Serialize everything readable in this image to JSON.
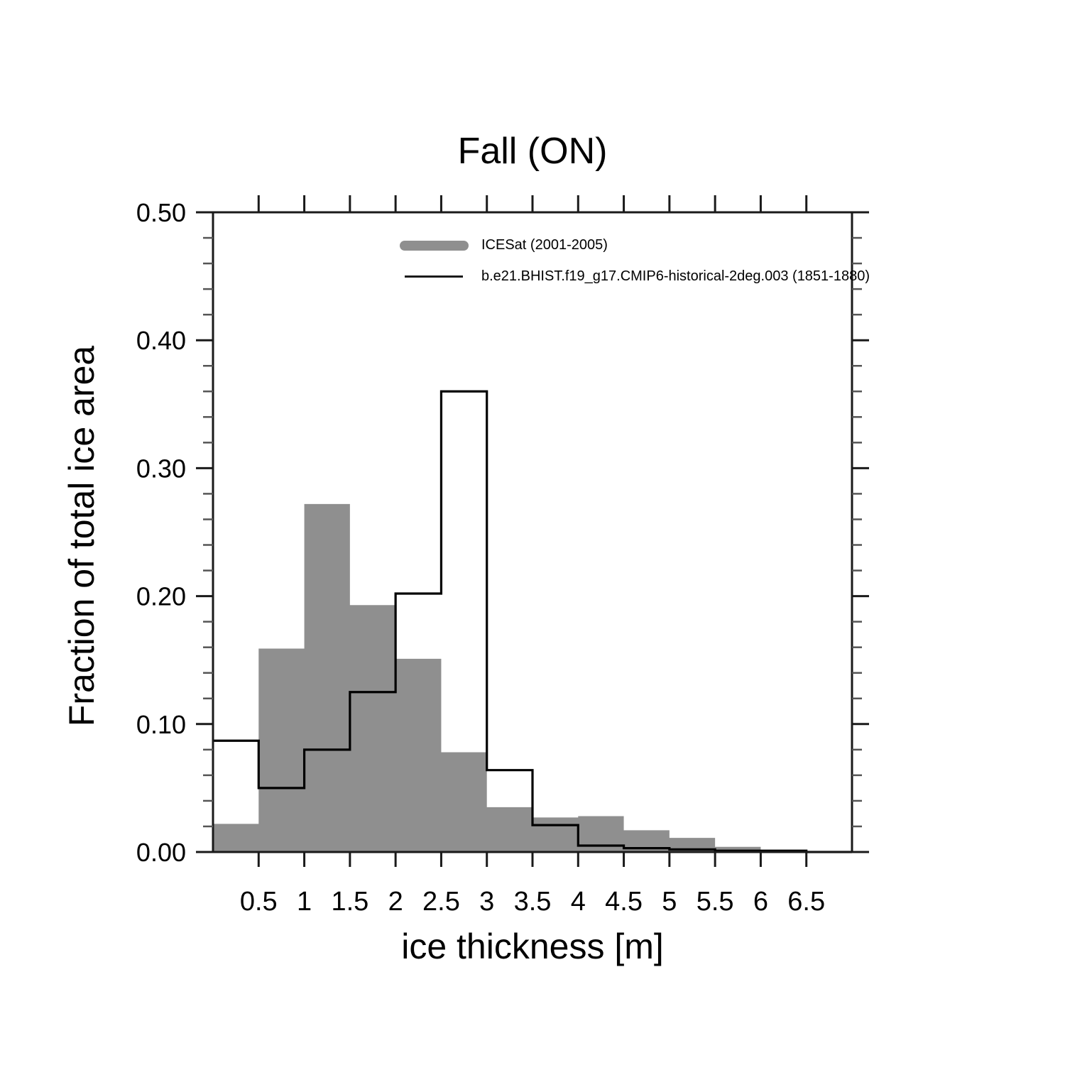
{
  "chart_data": {
    "type": "histogram",
    "title": "Fall (ON)",
    "xlabel": "ice thickness [m]",
    "ylabel": "Fraction of total ice area",
    "xlim": [
      0,
      7
    ],
    "ylim": [
      0.0,
      0.5
    ],
    "grid": false,
    "legend_position": "top-center-inside",
    "x_tick_values": [
      0.5,
      1,
      1.5,
      2,
      2.5,
      3,
      3.5,
      4,
      4.5,
      5,
      5.5,
      6,
      6.5
    ],
    "x_tick_labels": [
      "0.5",
      "1",
      "1.5",
      "2",
      "2.5",
      "3",
      "3.5",
      "4",
      "4.5",
      "5",
      "5.5",
      "6",
      "6.5"
    ],
    "y_tick_values": [
      0.0,
      0.1,
      0.2,
      0.3,
      0.4,
      0.5
    ],
    "y_tick_labels": [
      "0.00",
      "0.10",
      "0.20",
      "0.30",
      "0.40",
      "0.50"
    ],
    "y_minor_step": 0.02,
    "bin_width": 0.5,
    "bin_edges": [
      0,
      0.5,
      1,
      1.5,
      2,
      2.5,
      3,
      3.5,
      4,
      4.5,
      5,
      5.5,
      6,
      6.5
    ],
    "series": [
      {
        "name": "ICESat (2001-2005)",
        "style": "filled-step",
        "color": "#8f8f8f",
        "values": [
          0.022,
          0.159,
          0.272,
          0.193,
          0.151,
          0.078,
          0.035,
          0.027,
          0.028,
          0.017,
          0.011,
          0.004,
          0.0
        ]
      },
      {
        "name": "b.e21.BHIST.f19_g17.CMIP6-historical-2deg.003 (1851-1880)",
        "style": "step-line",
        "color": "#000000",
        "values": [
          0.087,
          0.05,
          0.08,
          0.125,
          0.202,
          0.36,
          0.064,
          0.021,
          0.005,
          0.003,
          0.002,
          0.001,
          0.001
        ]
      }
    ],
    "axis_color": "#1a1a1a"
  }
}
